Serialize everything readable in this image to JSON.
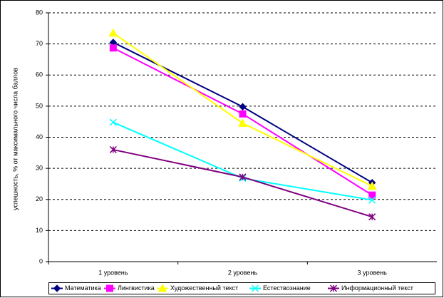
{
  "chart_data": {
    "type": "line",
    "y_label": "успешность, % от максимального числа баллов",
    "categories": [
      "1 уровень",
      "2 уровень",
      "3 уровень"
    ],
    "series": [
      {
        "name": "Математика",
        "color": "#000080",
        "marker": "diamond",
        "values": [
          70.5,
          49.8,
          25.4
        ]
      },
      {
        "name": "Лингвистика",
        "color": "#ff00ff",
        "marker": "square",
        "values": [
          68.7,
          47.5,
          21.4
        ]
      },
      {
        "name": "Художественный текст",
        "color": "#ffff00",
        "marker": "triangle",
        "values": [
          73.5,
          44.5,
          24.3
        ]
      },
      {
        "name": "Естествознание",
        "color": "#00ffff",
        "marker": "x",
        "values": [
          44.8,
          26.8,
          19.8
        ]
      },
      {
        "name": "Информационный текст",
        "color": "#800080",
        "marker": "star",
        "values": [
          36,
          27.2,
          14.4
        ]
      }
    ],
    "ylim": [
      0,
      80
    ],
    "yticks": [
      0,
      10,
      20,
      30,
      40,
      50,
      60,
      70,
      80
    ],
    "grid": true,
    "legend": "bottom"
  }
}
